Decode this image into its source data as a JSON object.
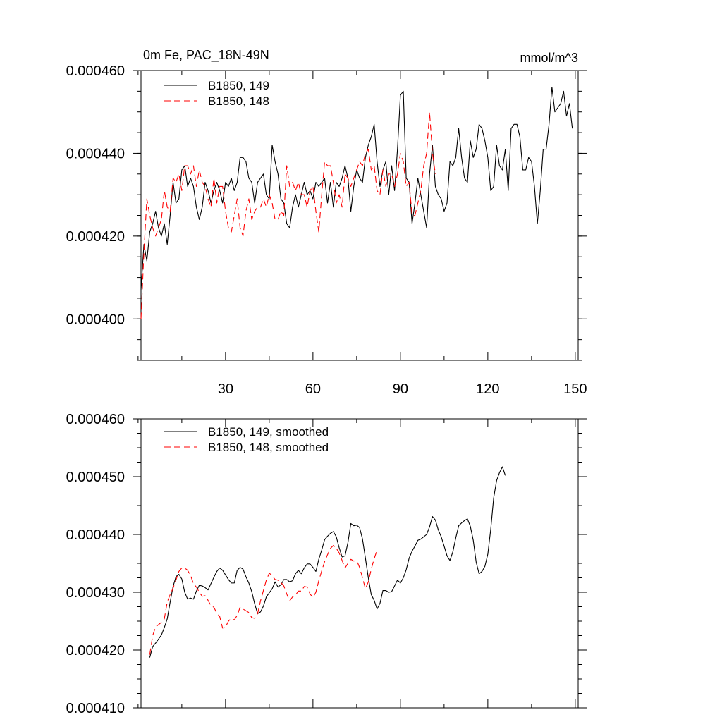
{
  "chart_data": [
    {
      "type": "line",
      "title": "0m Fe, PAC_18N-49N",
      "units": "mmol/m^3",
      "xlim": [
        1,
        151
      ],
      "ylim": [
        0.00039,
        0.00046
      ],
      "xticks": [
        30,
        60,
        90,
        120,
        150
      ],
      "yticks": [
        0.0004,
        0.00042,
        0.00044,
        0.00046
      ],
      "ytick_labels": [
        "0.000400",
        "0.000420",
        "0.000440",
        "0.000460"
      ],
      "legend_position": "top-left",
      "series": [
        {
          "name": "B1850, 149",
          "color": "#000000",
          "dash": "solid",
          "x_start": 1,
          "values": [
            0.000407,
            0.000418,
            0.000414,
            0.000421,
            0.000423,
            0.000426,
            0.000422,
            0.00042,
            0.000423,
            0.000418,
            0.000425,
            0.000433,
            0.000428,
            0.000429,
            0.000436,
            0.000437,
            0.000432,
            0.000434,
            0.000432,
            0.000427,
            0.000424,
            0.000427,
            0.000433,
            0.000431,
            0.000428,
            0.000431,
            0.000433,
            0.000431,
            0.000428,
            0.000433,
            0.000432,
            0.000434,
            0.000431,
            0.000433,
            0.000439,
            0.000439,
            0.000438,
            0.000434,
            0.000433,
            0.000428,
            0.000433,
            0.000434,
            0.000435,
            0.00043,
            0.000429,
            0.000442,
            0.000438,
            0.000435,
            0.000429,
            0.000428,
            0.000423,
            0.000422,
            0.000427,
            0.00043,
            0.000427,
            0.00043,
            0.000433,
            0.00043,
            0.000431,
            0.000429,
            0.000433,
            0.000432,
            0.000433,
            0.000434,
            0.000428,
            0.000433,
            0.000427,
            0.000433,
            0.000432,
            0.000434,
            0.000437,
            0.000434,
            0.000426,
            0.000432,
            0.000436,
            0.000434,
            0.000433,
            0.000439,
            0.000442,
            0.000444,
            0.000447,
            0.000438,
            0.000432,
            0.000436,
            0.000438,
            0.00043,
            0.000437,
            0.000431,
            0.000441,
            0.000454,
            0.000455,
            0.000434,
            0.000433,
            0.000423,
            0.000428,
            0.000434,
            0.00043,
            0.000426,
            0.000422,
            0.000435,
            0.000442,
            0.000432,
            0.00043,
            0.000429,
            0.000426,
            0.000428,
            0.000438,
            0.000437,
            0.000439,
            0.000446,
            0.000439,
            0.000434,
            0.000433,
            0.000443,
            0.000439,
            0.000441,
            0.000447,
            0.000446,
            0.000443,
            0.000439,
            0.000431,
            0.000432,
            0.000442,
            0.000437,
            0.000436,
            0.000441,
            0.000431,
            0.000446,
            0.000447,
            0.000447,
            0.000444,
            0.000436,
            0.000436,
            0.000439,
            0.000438,
            0.000432,
            0.000423,
            0.000431,
            0.000441,
            0.000441,
            0.000447,
            0.000456,
            0.00045,
            0.000451,
            0.000452,
            0.000455,
            0.000449,
            0.000452,
            0.000446
          ]
        },
        {
          "name": "B1850, 148",
          "color": "#ff0000",
          "dash": "dashed",
          "x_start": 1,
          "values": [
            0.0004,
            0.000416,
            0.000429,
            0.000425,
            0.000422,
            0.00042,
            0.000422,
            0.000424,
            0.000431,
            0.000427,
            0.000426,
            0.000434,
            0.000433,
            0.000435,
            0.000431,
            0.000437,
            0.000437,
            0.000435,
            0.000437,
            0.000432,
            0.000436,
            0.000433,
            0.000432,
            0.000429,
            0.000427,
            0.000434,
            0.000428,
            0.000432,
            0.000432,
            0.000426,
            0.000422,
            0.000421,
            0.000425,
            0.000429,
            0.000422,
            0.00042,
            0.000426,
            0.000429,
            0.000424,
            0.000426,
            0.000427,
            0.000427,
            0.000429,
            0.000427,
            0.00043,
            0.000428,
            0.000424,
            0.000424,
            0.000426,
            0.000425,
            0.000437,
            0.000432,
            0.000433,
            0.000431,
            0.000433,
            0.00043,
            0.00043,
            0.000427,
            0.000431,
            0.000432,
            0.000426,
            0.000421,
            0.00043,
            0.000438,
            0.000437,
            0.000437,
            0.000433,
            0.000428,
            0.00043,
            0.000427,
            0.000435,
            0.000434,
            0.000432,
            0.000434,
            0.000436,
            0.000438,
            0.000437,
            0.00044,
            0.000441,
            0.000436,
            0.000437,
            0.000431,
            0.00043,
            0.000436,
            0.000432,
            0.000435,
            0.000435,
            0.000432,
            0.000435,
            0.00044,
            0.000438,
            0.000432,
            0.000433,
            0.000425,
            0.000425,
            0.000428,
            0.000431,
            0.000437,
            0.00044,
            0.00045,
            0.00044,
            0.000435
          ]
        }
      ]
    },
    {
      "type": "line",
      "xlim": [
        1,
        151
      ],
      "ylim": [
        0.00041,
        0.00046
      ],
      "xticks": [
        30,
        60,
        90,
        120,
        150
      ],
      "yticks": [
        0.00041,
        0.00042,
        0.00043,
        0.00044,
        0.00045,
        0.00046
      ],
      "ytick_labels": [
        "0.000410",
        "0.000420",
        "0.000430",
        "0.000440",
        "0.000450",
        "0.000460"
      ],
      "legend_position": "top-left",
      "series": [
        {
          "name": "B1850, 149, smoothed",
          "color": "#000000",
          "dash": "solid",
          "x_start": 4,
          "values": [
            0.0004187,
            0.0004206,
            0.0004212,
            0.0004219,
            0.0004226,
            0.0004239,
            0.0004254,
            0.0004283,
            0.000431,
            0.0004327,
            0.0004331,
            0.0004323,
            0.00043,
            0.0004288,
            0.000429,
            0.0004288,
            0.0004302,
            0.0004312,
            0.0004311,
            0.0004308,
            0.0004304,
            0.0004315,
            0.0004326,
            0.0004336,
            0.0004342,
            0.0004338,
            0.000433,
            0.0004322,
            0.0004316,
            0.0004316,
            0.0004338,
            0.0004343,
            0.000434,
            0.0004327,
            0.0004316,
            0.0004301,
            0.000428,
            0.0004263,
            0.0004266,
            0.0004276,
            0.0004292,
            0.0004299,
            0.0004306,
            0.0004318,
            0.0004309,
            0.0004313,
            0.0004322,
            0.0004322,
            0.0004318,
            0.000432,
            0.0004332,
            0.0004338,
            0.0004332,
            0.0004342,
            0.0004349,
            0.0004349,
            0.0004343,
            0.0004336,
            0.0004357,
            0.0004373,
            0.0004391,
            0.0004397,
            0.0004402,
            0.0004405,
            0.0004396,
            0.0004377,
            0.0004361,
            0.0004363,
            0.0004386,
            0.0004419,
            0.0004415,
            0.0004416,
            0.0004412,
            0.0004392,
            0.0004359,
            0.0004325,
            0.0004296,
            0.0004286,
            0.0004271,
            0.0004281,
            0.0004303,
            0.0004303,
            0.00043,
            0.0004301,
            0.0004311,
            0.0004321,
            0.0004316,
            0.0004325,
            0.0004339,
            0.0004359,
            0.0004371,
            0.000438,
            0.000439,
            0.0004392,
            0.0004396,
            0.00044,
            0.0004413,
            0.0004431,
            0.0004425,
            0.0004408,
            0.0004396,
            0.000438,
            0.0004363,
            0.0004355,
            0.000437,
            0.0004394,
            0.0004415,
            0.000442,
            0.0004424,
            0.0004427,
            0.0004414,
            0.000439,
            0.0004352,
            0.0004332,
            0.0004336,
            0.0004345,
            0.0004366,
            0.0004409,
            0.0004463,
            0.0004493,
            0.0004507,
            0.0004517,
            0.0004502
          ]
        },
        {
          "name": "B1850, 148, smoothed",
          "color": "#ff0000",
          "dash": "dashed",
          "x_start": 4,
          "values": [
            0.0004192,
            0.0004225,
            0.000424,
            0.0004244,
            0.0004248,
            0.0004254,
            0.0004283,
            0.0004296,
            0.0004307,
            0.0004321,
            0.0004336,
            0.0004342,
            0.0004342,
            0.0004338,
            0.0004329,
            0.0004315,
            0.0004309,
            0.00043,
            0.0004293,
            0.0004294,
            0.0004286,
            0.0004277,
            0.0004274,
            0.0004264,
            0.0004258,
            0.0004238,
            0.000424,
            0.000425,
            0.0004255,
            0.0004252,
            0.000426,
            0.0004274,
            0.0004271,
            0.0004268,
            0.0004265,
            0.0004256,
            0.0004255,
            0.0004263,
            0.0004285,
            0.0004303,
            0.0004321,
            0.0004333,
            0.0004329,
            0.0004322,
            0.0004321,
            0.0004317,
            0.0004311,
            0.0004297,
            0.0004285,
            0.0004292,
            0.0004295,
            0.0004302,
            0.0004302,
            0.000431,
            0.0004309,
            0.0004297,
            0.0004291,
            0.00043,
            0.000432,
            0.0004337,
            0.0004353,
            0.0004365,
            0.0004376,
            0.0004381,
            0.0004376,
            0.0004368,
            0.0004355,
            0.0004342,
            0.000435,
            0.0004357,
            0.0004354,
            0.0004355,
            0.0004343,
            0.0004325,
            0.0004306,
            0.0004318,
            0.000434,
            0.0004358,
            0.0004373
          ]
        }
      ]
    }
  ]
}
